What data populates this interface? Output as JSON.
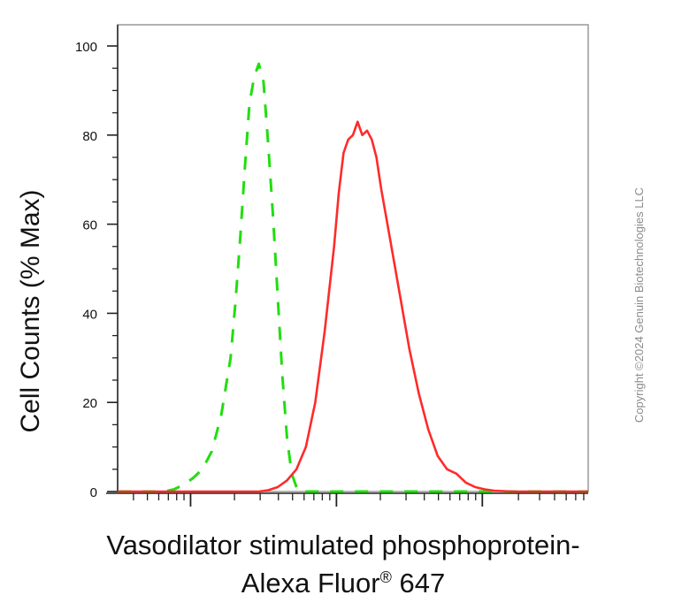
{
  "chart_data": {
    "type": "line",
    "title": "",
    "ylabel": "Cell Counts (% Max)",
    "xlabel_line1": "Vasodilator stimulated phosphoprotein-",
    "xlabel_line2_text": "Alexa Fluor",
    "xlabel_line2_reg": "®",
    "xlabel_line2_suffix": " 647",
    "xscale": "log (flow cytometry fluorescence intensity)",
    "x_tick_labels": [],
    "yticks": [
      0,
      20,
      40,
      60,
      80,
      100
    ],
    "ylim": [
      0,
      100
    ],
    "xlim": [
      0,
      1
    ],
    "grid": false,
    "legend": "none",
    "series": [
      {
        "style": "dashed",
        "color": "#22dd11",
        "x": [
          0.0,
          0.1,
          0.12,
          0.14,
          0.16,
          0.18,
          0.2,
          0.22,
          0.24,
          0.25,
          0.26,
          0.27,
          0.28,
          0.29,
          0.3,
          0.31,
          0.32,
          0.33,
          0.34,
          0.35,
          0.36,
          0.37,
          0.38,
          0.385,
          0.39,
          0.4,
          1.0
        ],
        "y": [
          0,
          0,
          0.5,
          1.5,
          3,
          5,
          9,
          17,
          30,
          42,
          56,
          72,
          87,
          93,
          96,
          92,
          78,
          62,
          44,
          26,
          12,
          4,
          1,
          0,
          0,
          0,
          0
        ]
      },
      {
        "style": "solid",
        "color": "#ff2a2a",
        "x": [
          0.0,
          0.3,
          0.32,
          0.34,
          0.36,
          0.38,
          0.4,
          0.42,
          0.44,
          0.46,
          0.47,
          0.48,
          0.49,
          0.5,
          0.51,
          0.52,
          0.53,
          0.54,
          0.55,
          0.56,
          0.58,
          0.6,
          0.62,
          0.64,
          0.66,
          0.68,
          0.7,
          0.72,
          0.74,
          0.76,
          0.78,
          0.8,
          0.84,
          1.0
        ],
        "y": [
          0,
          0,
          0.3,
          1,
          2.5,
          5,
          10,
          20,
          36,
          55,
          67,
          76,
          79,
          80,
          83,
          80,
          81,
          79,
          75,
          68,
          56,
          44,
          32,
          22,
          14,
          8,
          5,
          4,
          2,
          1,
          0.5,
          0.2,
          0,
          0
        ]
      }
    ]
  },
  "watermark": "Copyright ©2024 Genuin Biotechnologies LLC"
}
